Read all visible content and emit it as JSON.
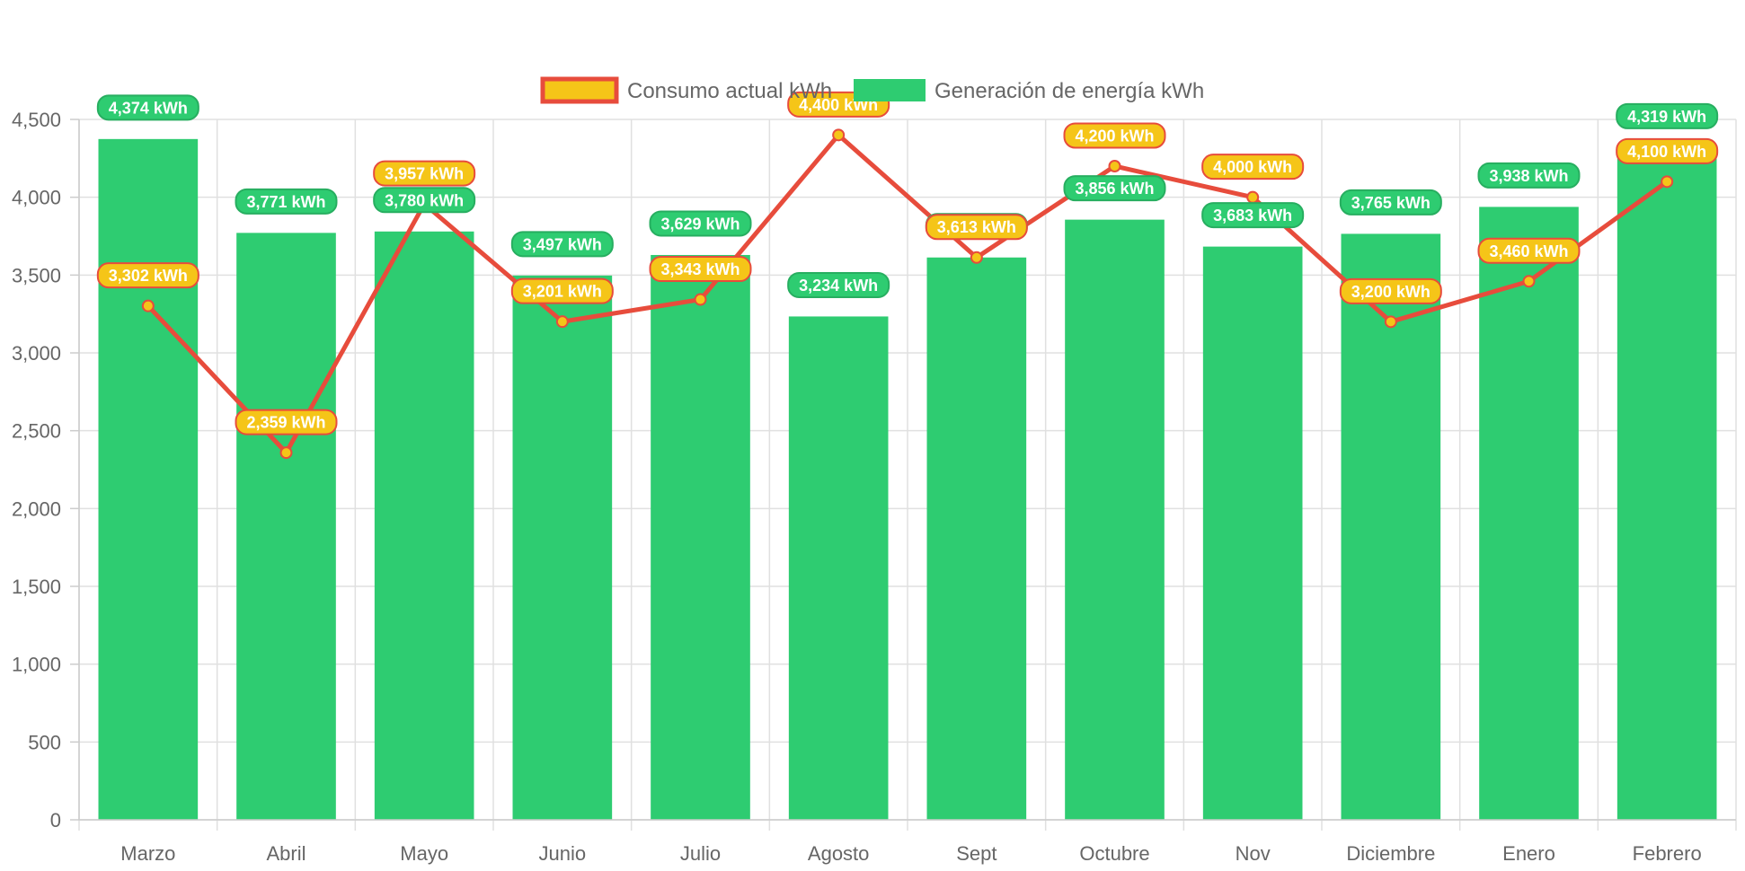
{
  "chart_data": {
    "type": "bar",
    "categories": [
      "Marzo",
      "Abril",
      "Mayo",
      "Junio",
      "Julio",
      "Agosto",
      "Sept",
      "Octubre",
      "Nov",
      "Diciembre",
      "Enero",
      "Febrero"
    ],
    "series": [
      {
        "name": "Consumo actual kWh",
        "type": "line",
        "values": [
          3302,
          2359,
          3957,
          3201,
          3343,
          4400,
          3613,
          4200,
          4000,
          3200,
          3460,
          4100
        ],
        "labels": [
          "3,302 kWh",
          "2,359 kWh",
          "3,957 kWh",
          "3,201 kWh",
          "3,343 kWh",
          "4,400 kWh",
          "3,613 kWh",
          "4,200 kWh",
          "4,000 kWh",
          "3,200 kWh",
          "3,460 kWh",
          "4,100 kWh"
        ],
        "line_color": "#e74c3c",
        "fill_color": "#f5c518"
      },
      {
        "name": "Generación de energía kWh",
        "type": "bar",
        "values": [
          4374,
          3771,
          3780,
          3497,
          3629,
          3234,
          3613,
          3856,
          3683,
          3765,
          3938,
          4319
        ],
        "labels": [
          "4,374 kWh",
          "3,771 kWh",
          "3,780 kWh",
          "3,497 kWh",
          "3,629 kWh",
          "3,234 kWh",
          "3,613 kWh",
          "3,856 kWh",
          "3,683 kWh",
          "3,765 kWh",
          "3,938 kWh",
          "4,319 kWh"
        ],
        "color": "#2ecc71",
        "border_color": "#27ae60"
      }
    ],
    "ylim": [
      0,
      4500
    ],
    "yticks": [
      0,
      500,
      1000,
      1500,
      2000,
      2500,
      3000,
      3500,
      4000,
      4500
    ],
    "ytick_labels": [
      "0",
      "500",
      "1,000",
      "1,500",
      "2,000",
      "2,500",
      "3,000",
      "3,500",
      "4,000",
      "4,500"
    ],
    "grid": true,
    "legend": "top-center",
    "title": "",
    "xlabel": "",
    "ylabel": ""
  }
}
